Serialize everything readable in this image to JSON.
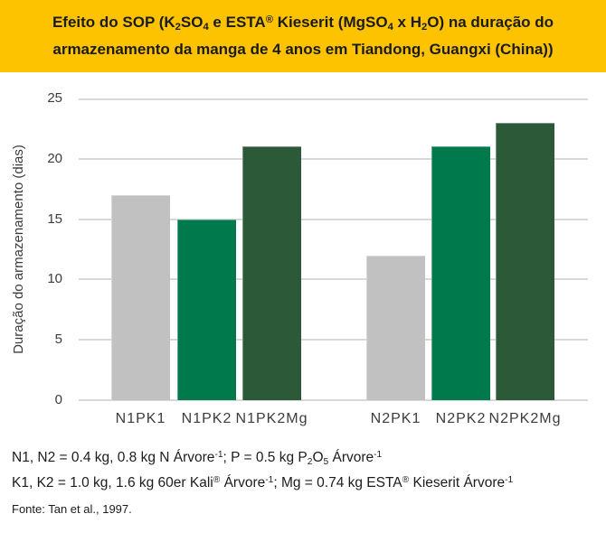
{
  "banner": {
    "line1": [
      {
        "t": "Efeito do SOP (K"
      },
      {
        "t": "2",
        "s": "sub"
      },
      {
        "t": "SO"
      },
      {
        "t": "4",
        "s": "sub"
      },
      {
        "t": " e ESTA"
      },
      {
        "t": "®",
        "s": "sup"
      },
      {
        "t": " Kieserit (MgSO"
      },
      {
        "t": "4",
        "s": "sub"
      },
      {
        "t": " x H"
      },
      {
        "t": "2",
        "s": "sub"
      },
      {
        "t": "O) na duração do"
      }
    ],
    "line2": [
      {
        "t": "armazenamento da manga de 4 anos em Tiandong, Guangxi (China))"
      }
    ]
  },
  "chart_data": {
    "type": "bar",
    "categories": [
      "N1PK1",
      "N1PK2",
      "N1PK2Mg",
      "N2PK1",
      "N2PK2",
      "N2PK2Mg"
    ],
    "values": [
      17,
      15,
      21,
      12,
      21,
      23
    ],
    "bar_colors": [
      "#c1c1c1",
      "#007a4d",
      "#2c5a38",
      "#c1c1c1",
      "#007a4d",
      "#2c5a38"
    ],
    "groups": [
      [
        "N1PK1",
        "N1PK2",
        "N1PK2Mg"
      ],
      [
        "N2PK1",
        "N2PK2",
        "N2PK2Mg"
      ]
    ],
    "xlabel": "",
    "ylabel": "Duração do armazenamento (dias)",
    "ylim": [
      0,
      25
    ],
    "yticks": [
      0,
      5,
      10,
      15,
      20,
      25
    ],
    "grid": true,
    "legend": "none",
    "gridline_color": "#d8d8d8",
    "banner_color": "#fdc300"
  },
  "footnotes": {
    "line1": [
      {
        "t": "N1, N2 = 0.4 kg, 0.8 kg N Árvore"
      },
      {
        "t": "-1",
        "s": "sup"
      },
      {
        "t": "; P = 0.5 kg P"
      },
      {
        "t": "2",
        "s": "sub"
      },
      {
        "t": "O"
      },
      {
        "t": "5",
        "s": "sub"
      },
      {
        "t": " Árvore"
      },
      {
        "t": "-1",
        "s": "sup"
      }
    ],
    "line2": [
      {
        "t": "K1, K2 = 1.0 kg, 1.6 kg 60er Kali"
      },
      {
        "t": "®",
        "s": "sup"
      },
      {
        "t": " Árvore"
      },
      {
        "t": "-1",
        "s": "sup"
      },
      {
        "t": "; Mg = 0.74 kg ESTA"
      },
      {
        "t": "®",
        "s": "sup"
      },
      {
        "t": " Kieserit Árvore"
      },
      {
        "t": "-1",
        "s": "sup"
      }
    ]
  },
  "source": "Fonte: Tan et al., 1997."
}
